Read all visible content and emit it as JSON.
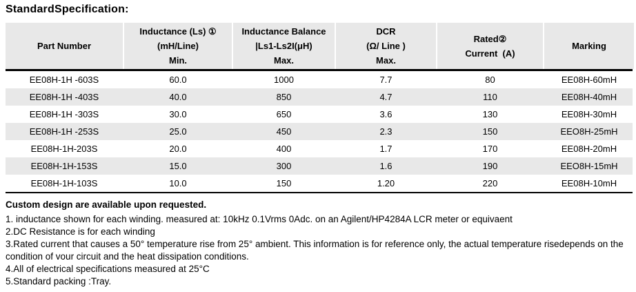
{
  "title": "StandardSpecification:",
  "table": {
    "columns": [
      {
        "line1": "Part Number",
        "line2": "",
        "line3": ""
      },
      {
        "line1": "Inductance (Ls) ①",
        "line2": "(mH/Line)",
        "line3": "Min."
      },
      {
        "line1": "Inductance Balance",
        "line2": "|Ls1-Ls2I(μH)",
        "line3": "Max."
      },
      {
        "line1": "DCR",
        "line2": "(Ω/ Line )",
        "line3": "Max."
      },
      {
        "line1": "Rated②",
        "line2": "Current  (A)",
        "line3": ""
      },
      {
        "line1": "Marking",
        "line2": "",
        "line3": ""
      }
    ],
    "rows": [
      [
        "EE08H-1H -603S",
        "60.0",
        "1000",
        "7.7",
        "80",
        "EE08H-60mH"
      ],
      [
        "EE08H-1H -403S",
        "40.0",
        "850",
        "4.7",
        "110",
        "EE08H-40mH"
      ],
      [
        "EE08H-1H -303S",
        "30.0",
        "650",
        "3.6",
        "130",
        "EE08H-30mH"
      ],
      [
        "EE08H-1H -253S",
        "25.0",
        "450",
        "2.3",
        "150",
        "EEO8H-25mH"
      ],
      [
        "EE08H-1H-203S",
        "20.0",
        "400",
        "1.7",
        "170",
        "EE08H-20mH"
      ],
      [
        "EE08H-1H-153S",
        "15.0",
        "300",
        "1.6",
        "190",
        "EEO8H-15mH"
      ],
      [
        "EE08H-1H-103S",
        "10.0",
        "150",
        "1.20",
        "220",
        "EE08H-10mH"
      ]
    ]
  },
  "footer": {
    "custom_note": "Custom design are available upon requested.",
    "notes": [
      "1. inductance shown for each winding. measured at: 10kHz 0.1Vrms 0Adc. on an Agilent/HP4284A LCR meter or equivaent",
      "2.DC Resistance is for each winding",
      "3.Rated current that causes a 50° temperature rise from 25° ambient. This information is for reference only, the actual temperature risedepends on the condition of vour circuit and the heat dissipation conditions.",
      "4.All of electrical specifications measured at 25°C",
      "5.Standard packing :Tray."
    ]
  },
  "colors": {
    "header_bg": "#e8e8e8",
    "row_alt_bg": "#e8e8e8",
    "border": "#000000",
    "text": "#000000"
  }
}
